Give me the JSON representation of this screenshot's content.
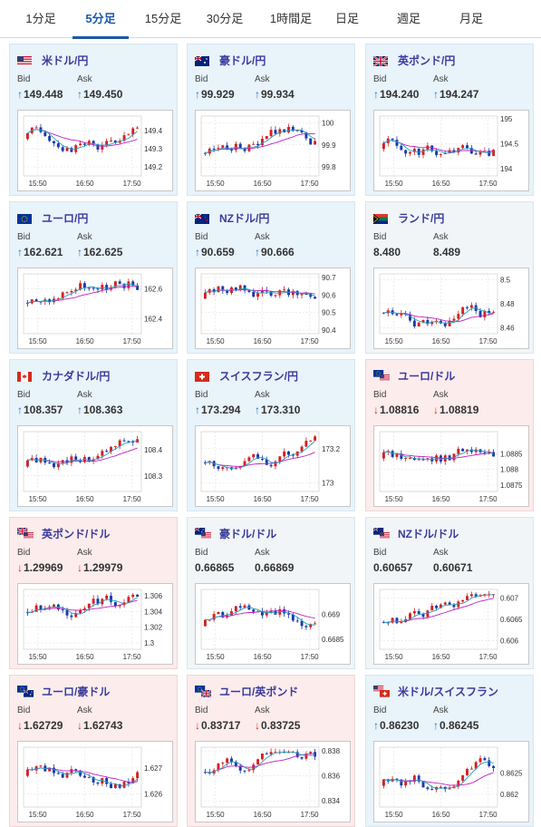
{
  "tabs": [
    {
      "label": "1分足",
      "active": false
    },
    {
      "label": "5分足",
      "active": true
    },
    {
      "label": "15分足",
      "active": false
    },
    {
      "label": "30分足",
      "active": false
    },
    {
      "label": "1時間足",
      "active": false
    },
    {
      "label": "日足",
      "active": false
    },
    {
      "label": "週足",
      "active": false
    },
    {
      "label": "月足",
      "active": false
    }
  ],
  "labels": {
    "bid": "Bid",
    "ask": "Ask",
    "up_arrow": "↑",
    "down_arrow": "↓"
  },
  "colors": {
    "up": "#2a6fd0",
    "down": "#d03030",
    "bull_candle": "#d62020",
    "bear_candle": "#1a3aa8",
    "ma1": "#c020c0",
    "ma2": "#20a0c0"
  },
  "pairs": [
    {
      "name": "米ドル/円",
      "flag": "us-flag",
      "dir": "up",
      "bid": "149.448",
      "ask": "149.450",
      "chart_data": {
        "type": "candlestick",
        "x_ticks": [
          "15:50",
          "16:50",
          "17:50"
        ],
        "y_ticks": [
          "149.4",
          "149.3",
          "149.2"
        ],
        "ylim": [
          149.15,
          149.48
        ]
      }
    },
    {
      "name": "豪ドル/円",
      "flag": "au-flag",
      "dir": "up",
      "bid": "99.929",
      "ask": "99.934",
      "chart_data": {
        "type": "candlestick",
        "x_ticks": [
          "15:50",
          "16:50",
          "17:50"
        ],
        "y_ticks": [
          "100",
          "99.9",
          "99.8"
        ],
        "ylim": [
          99.76,
          100.03
        ]
      }
    },
    {
      "name": "英ポンド/円",
      "flag": "uk-flag",
      "dir": "up",
      "bid": "194.240",
      "ask": "194.247",
      "chart_data": {
        "type": "candlestick",
        "x_ticks": [
          "15:50",
          "16:50",
          "17:50"
        ],
        "y_ticks": [
          "195",
          "194.5",
          "194"
        ],
        "ylim": [
          193.85,
          195.05
        ]
      }
    },
    {
      "name": "ユーロ/円",
      "flag": "eu-flag",
      "dir": "up",
      "bid": "162.621",
      "ask": "162.625",
      "chart_data": {
        "type": "candlestick",
        "x_ticks": [
          "15:50",
          "16:50",
          "17:50"
        ],
        "y_ticks": [
          "162.6",
          "162.4"
        ],
        "ylim": [
          162.3,
          162.7
        ]
      }
    },
    {
      "name": "NZドル/円",
      "flag": "nz-flag",
      "dir": "up",
      "bid": "90.659",
      "ask": "90.666",
      "chart_data": {
        "type": "candlestick",
        "x_ticks": [
          "15:50",
          "16:50",
          "17:50"
        ],
        "y_ticks": [
          "90.7",
          "90.6",
          "90.5",
          "90.4"
        ],
        "ylim": [
          90.38,
          90.72
        ]
      }
    },
    {
      "name": "ランド/円",
      "flag": "za-flag",
      "dir": "flat",
      "bid": "8.480",
      "ask": "8.489",
      "chart_data": {
        "type": "candlestick",
        "x_ticks": [
          "15:50",
          "16:50",
          "17:50"
        ],
        "y_ticks": [
          "8.5",
          "8.48",
          "8.46"
        ],
        "ylim": [
          8.455,
          8.505
        ]
      }
    },
    {
      "name": "カナダドル/円",
      "flag": "ca-flag",
      "dir": "up",
      "bid": "108.357",
      "ask": "108.363",
      "chart_data": {
        "type": "candlestick",
        "x_ticks": [
          "15:50",
          "16:50",
          "17:50"
        ],
        "y_ticks": [
          "108.4",
          "108.3"
        ],
        "ylim": [
          108.24,
          108.47
        ]
      }
    },
    {
      "name": "スイスフラン/円",
      "flag": "ch-flag",
      "dir": "up",
      "bid": "173.294",
      "ask": "173.310",
      "chart_data": {
        "type": "candlestick",
        "x_ticks": [
          "15:50",
          "16:50",
          "17:50"
        ],
        "y_ticks": [
          "173.2",
          "173"
        ],
        "ylim": [
          172.95,
          173.3
        ]
      }
    },
    {
      "name": "ユーロ/ドル",
      "flag": "eu-us-flag",
      "dir": "down",
      "bid": "1.08816",
      "ask": "1.08819",
      "chart_data": {
        "type": "candlestick",
        "x_ticks": [
          "15:50",
          "16:50",
          "17:50"
        ],
        "y_ticks": [
          "1.0885",
          "1.088",
          "1.0875"
        ],
        "ylim": [
          1.0873,
          1.0892
        ]
      }
    },
    {
      "name": "英ポンド/ドル",
      "flag": "uk-us-flag",
      "dir": "down",
      "bid": "1.29969",
      "ask": "1.29979",
      "chart_data": {
        "type": "candlestick",
        "x_ticks": [
          "15:50",
          "16:50",
          "17:50"
        ],
        "y_ticks": [
          "1.306",
          "1.304",
          "1.302",
          "1.3"
        ],
        "ylim": [
          1.2992,
          1.3068
        ]
      }
    },
    {
      "name": "豪ドル/ドル",
      "flag": "au-us-flag",
      "dir": "flat",
      "bid": "0.66865",
      "ask": "0.66869",
      "chart_data": {
        "type": "candlestick",
        "x_ticks": [
          "15:50",
          "16:50",
          "17:50"
        ],
        "y_ticks": [
          "0.669",
          "0.6685"
        ],
        "ylim": [
          0.6683,
          0.6695
        ]
      }
    },
    {
      "name": "NZドル/ドル",
      "flag": "nz-us-flag",
      "dir": "flat",
      "bid": "0.60657",
      "ask": "0.60671",
      "chart_data": {
        "type": "candlestick",
        "x_ticks": [
          "15:50",
          "16:50",
          "17:50"
        ],
        "y_ticks": [
          "0.607",
          "0.6065",
          "0.606"
        ],
        "ylim": [
          0.6058,
          0.6072
        ]
      }
    },
    {
      "name": "ユーロ/豪ドル",
      "flag": "eu-au-flag",
      "dir": "down",
      "bid": "1.62729",
      "ask": "1.62743",
      "chart_data": {
        "type": "candlestick",
        "x_ticks": [
          "15:50",
          "16:50",
          "17:50"
        ],
        "y_ticks": [
          "1.627",
          "1.626"
        ],
        "ylim": [
          1.6255,
          1.6278
        ]
      }
    },
    {
      "name": "ユーロ/英ポンド",
      "flag": "eu-uk-flag",
      "dir": "down",
      "bid": "0.83717",
      "ask": "0.83725",
      "chart_data": {
        "type": "candlestick",
        "x_ticks": [
          "15:50",
          "16:50",
          "17:50"
        ],
        "y_ticks": [
          "0.838",
          "0.836",
          "0.834"
        ],
        "ylim": [
          0.8335,
          0.8383
        ]
      }
    },
    {
      "name": "米ドル/スイスフラン",
      "flag": "us-ch-flag",
      "dir": "up",
      "bid": "0.86230",
      "ask": "0.86245",
      "chart_data": {
        "type": "candlestick",
        "x_ticks": [
          "15:50",
          "16:50",
          "17:50"
        ],
        "y_ticks": [
          "0.8625",
          "0.862"
        ],
        "ylim": [
          0.8617,
          0.8631
        ]
      }
    }
  ]
}
